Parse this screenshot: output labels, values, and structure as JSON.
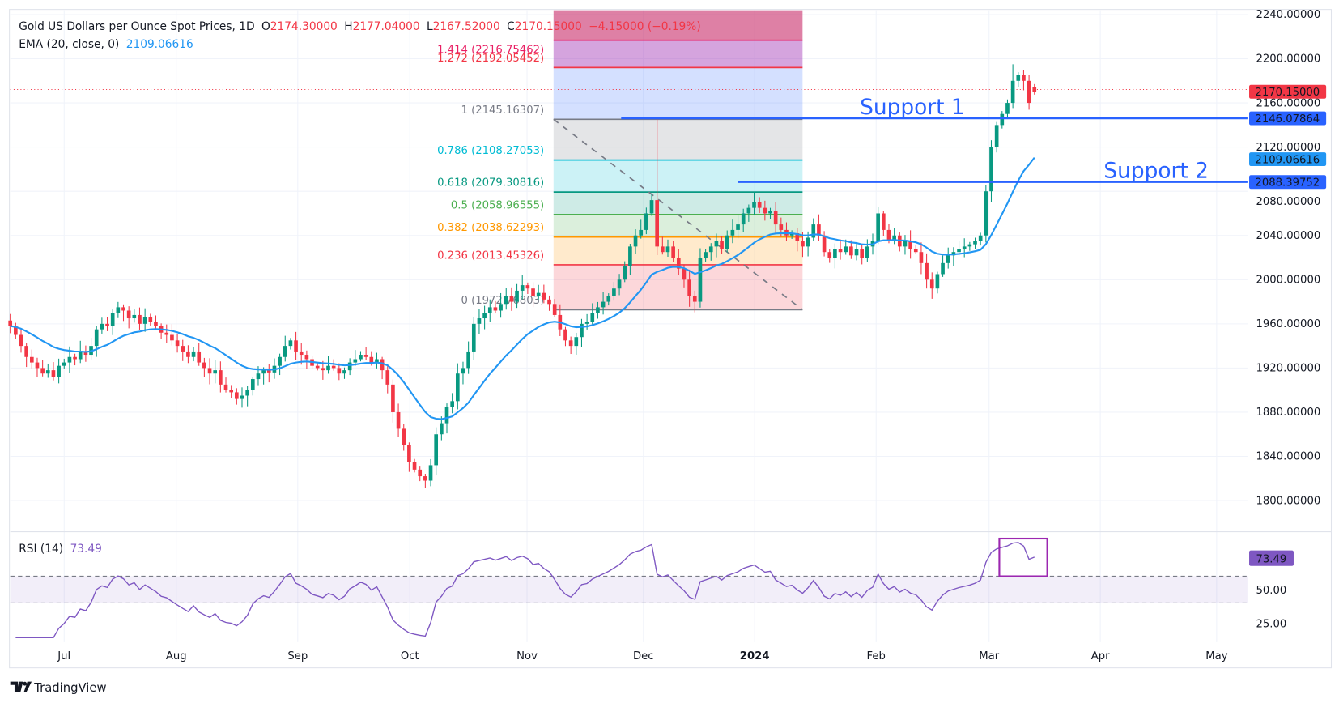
{
  "header": {
    "title": "Gold US Dollars per Ounce Spot Prices, 1D",
    "o_label": "O",
    "o_value": "2174.30000",
    "h_label": "H",
    "h_value": "2177.04000",
    "l_label": "L",
    "l_value": "2167.52000",
    "c_label": "C",
    "c_value": "2170.15000",
    "change": "−4.15000 (−0.19%)",
    "ema_label": "EMA (20, close, 0)",
    "ema_value": "2109.06616"
  },
  "rsi": {
    "label": "RSI (14)",
    "value": "73.49",
    "ticks": [
      "50.00",
      "25.00"
    ],
    "bands": [
      60,
      40
    ]
  },
  "price_axis": {
    "ticks": [
      "2240.00000",
      "2200.00000",
      "2160.00000",
      "2120.00000",
      "2080.00000",
      "2040.00000",
      "2000.00000",
      "1960.00000",
      "1920.00000",
      "1880.00000",
      "1840.00000",
      "1800.00000"
    ],
    "badges": [
      {
        "text": "2170.15000",
        "value": 2170.15,
        "color": "#f23645"
      },
      {
        "text": "2146.07864",
        "value": 2146.08,
        "color": "#2962ff"
      },
      {
        "text": "2109.06616",
        "value": 2109.07,
        "color": "#2196f3"
      },
      {
        "text": "2088.39752",
        "value": 2088.4,
        "color": "#2962ff"
      }
    ]
  },
  "time_axis": [
    "Jul",
    "Aug",
    "Sep",
    "Oct",
    "Nov",
    "Dec",
    "2024",
    "Feb",
    "Mar",
    "Apr",
    "May"
  ],
  "annotations": {
    "support1": {
      "label": "Support 1",
      "value": 2146.07864
    },
    "support2": {
      "label": "Support 2",
      "value": 2088.39752
    }
  },
  "fib": [
    {
      "level": 0,
      "price": 1972.76803,
      "label": "0 (1972.76803)",
      "color": "#787b86"
    },
    {
      "level": 0.236,
      "price": 2013.45326,
      "label": "0.236 (2013.45326)",
      "color": "#f23645"
    },
    {
      "level": 0.382,
      "price": 2038.62293,
      "label": "0.382 (2038.62293)",
      "color": "#ff9800"
    },
    {
      "level": 0.5,
      "price": 2058.96555,
      "label": "0.5 (2058.96555)",
      "color": "#4caf50"
    },
    {
      "level": 0.618,
      "price": 2079.30816,
      "label": "0.618 (2079.30816)",
      "color": "#089981"
    },
    {
      "level": 0.786,
      "price": 2108.27053,
      "label": "0.786 (2108.27053)",
      "color": "#00bcd4"
    },
    {
      "level": 1,
      "price": 2145.16307,
      "label": "1 (2145.16307)",
      "color": "#787b86"
    },
    {
      "level": 1.272,
      "price": 2192.05452,
      "label": "1.272 (2192.05452)",
      "color": "#f23645"
    },
    {
      "level": 1.414,
      "price": 2216.75462,
      "label": "1.414 (2216.75462)",
      "color": "#e91e63"
    }
  ],
  "footer": {
    "brand": "TradingView"
  },
  "chart_data": {
    "type": "candlestick",
    "title": "Gold US Dollars per Ounce Spot Prices, 1D",
    "ylim": [
      1780,
      2250
    ],
    "x_range": "late Jun 2023 – mid Mar 2024 (daily)",
    "closes": [
      1958,
      1950,
      1940,
      1930,
      1925,
      1920,
      1915,
      1918,
      1912,
      1922,
      1925,
      1930,
      1928,
      1935,
      1932,
      1940,
      1955,
      1960,
      1958,
      1970,
      1975,
      1972,
      1965,
      1968,
      1960,
      1966,
      1962,
      1958,
      1952,
      1950,
      1945,
      1940,
      1935,
      1930,
      1935,
      1925,
      1920,
      1915,
      1918,
      1905,
      1900,
      1898,
      1892,
      1895,
      1900,
      1910,
      1915,
      1918,
      1916,
      1922,
      1930,
      1940,
      1945,
      1935,
      1932,
      1928,
      1922,
      1920,
      1918,
      1922,
      1920,
      1915,
      1918,
      1925,
      1928,
      1932,
      1930,
      1925,
      1928,
      1918,
      1905,
      1880,
      1865,
      1850,
      1835,
      1828,
      1822,
      1818,
      1832,
      1860,
      1870,
      1885,
      1890,
      1915,
      1920,
      1935,
      1960,
      1965,
      1970,
      1975,
      1972,
      1978,
      1985,
      1980,
      1990,
      1995,
      1992,
      1985,
      1988,
      1982,
      1978,
      1968,
      1955,
      1945,
      1940,
      1948,
      1960,
      1962,
      1970,
      1975,
      1980,
      1985,
      1992,
      2000,
      2012,
      2030,
      2040,
      2045,
      2060,
      2072,
      2030,
      2025,
      2030,
      2020,
      2010,
      2000,
      1985,
      1980,
      2020,
      2025,
      2030,
      2035,
      2028,
      2040,
      2045,
      2050,
      2060,
      2065,
      2070,
      2065,
      2060,
      2062,
      2050,
      2045,
      2040,
      2042,
      2035,
      2030,
      2038,
      2050,
      2040,
      2025,
      2020,
      2028,
      2025,
      2030,
      2022,
      2028,
      2020,
      2030,
      2035,
      2060,
      2045,
      2035,
      2040,
      2030,
      2035,
      2028,
      2025,
      2015,
      2000,
      1992,
      2005,
      2015,
      2022,
      2025,
      2028,
      2030,
      2032,
      2035,
      2040,
      2080,
      2120,
      2140,
      2150,
      2160,
      2180,
      2185,
      2180,
      2160,
      2170.15
    ],
    "high_overrides": {
      "120": 2146.08,
      "190": 2177.04,
      "186": 2195
    },
    "last_candle": {
      "open": 2174.3,
      "high": 2177.04,
      "low": 2167.52,
      "close": 2170.15
    },
    "series": [
      {
        "name": "EMA (20, close, 0)",
        "last": 2109.06616,
        "color": "#2196f3"
      },
      {
        "name": "RSI (14)",
        "last": 73.49,
        "color": "#7e57c2"
      }
    ],
    "up_color": "#089981",
    "down_color": "#f23645"
  }
}
